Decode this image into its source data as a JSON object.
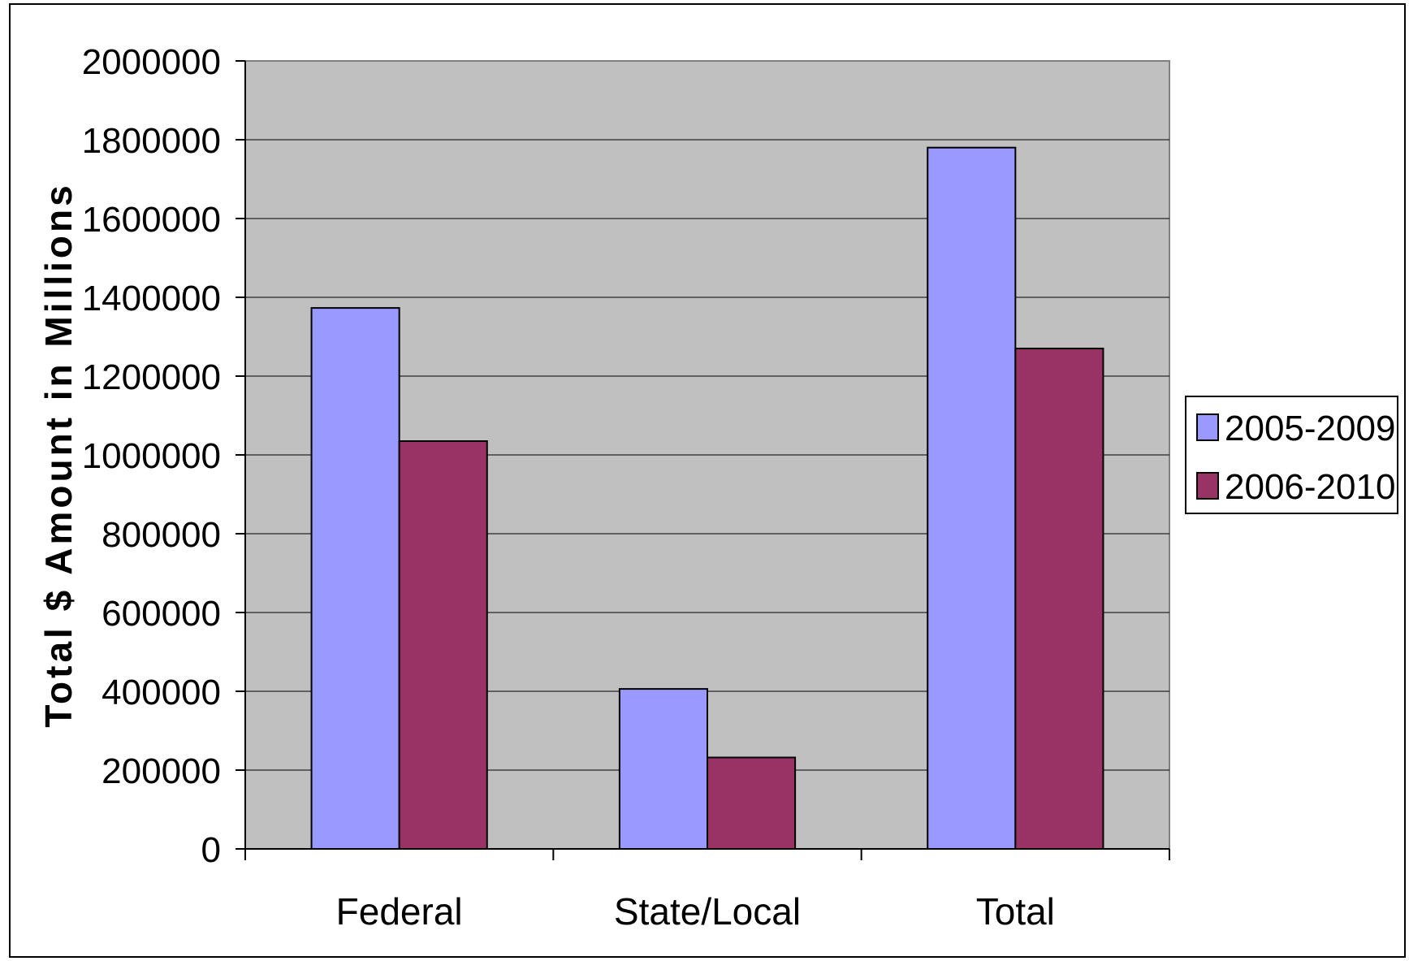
{
  "chart_data": {
    "type": "bar",
    "categories": [
      "Federal",
      "State/Local",
      "Total"
    ],
    "series": [
      {
        "name": "2005-2009",
        "values": [
          1373000,
          406000,
          1780000
        ],
        "color": "#9999ff"
      },
      {
        "name": "2006-2010",
        "values": [
          1035000,
          232000,
          1270000
        ],
        "color": "#993366"
      }
    ],
    "title": "",
    "xlabel": "",
    "ylabel": "Total $ Amount in Millions",
    "ylim": [
      0,
      2000000
    ],
    "yticks": [
      "0",
      "200000",
      "400000",
      "600000",
      "800000",
      "1000000",
      "1200000",
      "1400000",
      "1600000",
      "1800000",
      "2000000"
    ],
    "grid": true,
    "legend_position": "right",
    "plot_background": "#c0c0c0"
  }
}
